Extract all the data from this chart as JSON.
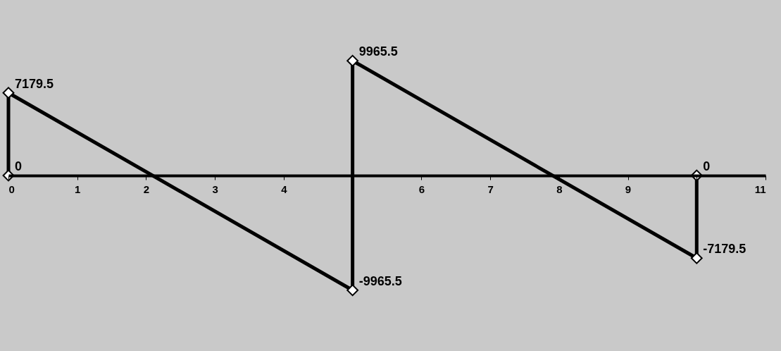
{
  "chart_data": {
    "type": "line",
    "x": [
      0,
      0,
      5,
      5,
      10,
      10
    ],
    "series": [
      {
        "color": "#000000",
        "values": [
          0,
          7179.5,
          -9965.5,
          9965.5,
          -7179.5,
          0
        ]
      }
    ],
    "xlim": [
      0,
      11
    ],
    "xticks": [
      0,
      1,
      2,
      3,
      4,
      {
        "value": 5,
        "label": null
      },
      6,
      7,
      8,
      9,
      {
        "value": 10,
        "label": null
      },
      11
    ],
    "ylim": [
      -15000,
      15000
    ],
    "tick_labels": "x",
    "grid": false,
    "marker": "diamond",
    "line_style": "solid",
    "data_labels": true
  }
}
